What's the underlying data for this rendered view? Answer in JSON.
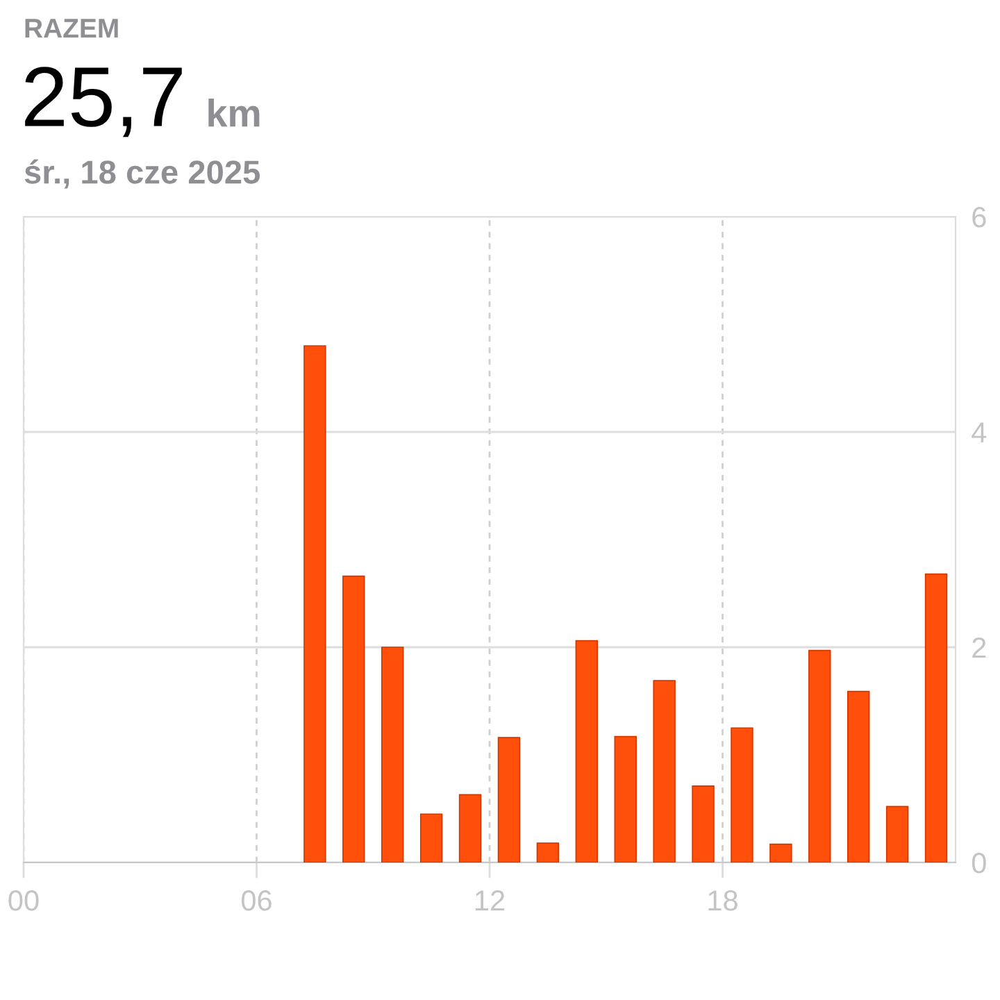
{
  "chart_data": {
    "type": "bar",
    "title": "RAZEM",
    "subtitle": "śr., 18 cze 2025",
    "annotations": [
      "25,7",
      "km"
    ],
    "x": [
      7.5,
      8.5,
      9.5,
      10.5,
      11.5,
      12.5,
      13.5,
      14.5,
      15.5,
      16.5,
      17.5,
      18.5,
      19.5,
      20.5,
      21.5,
      22.5,
      23.5
    ],
    "values": [
      4.8,
      2.66,
      2.0,
      0.45,
      0.63,
      1.16,
      0.18,
      2.06,
      1.17,
      1.69,
      0.71,
      1.25,
      0.17,
      1.97,
      1.59,
      0.52,
      2.68
    ],
    "color": "#ff4f0a",
    "xlim": [
      0,
      24
    ],
    "xticks": [
      {
        "value": 0,
        "label": "00"
      },
      {
        "value": 6,
        "label": "06"
      },
      {
        "value": 12,
        "label": "12"
      },
      {
        "value": 18,
        "label": "18"
      }
    ],
    "ylim": [
      0,
      6
    ],
    "yticks": [
      0,
      2,
      4,
      6
    ],
    "grid": true
  }
}
